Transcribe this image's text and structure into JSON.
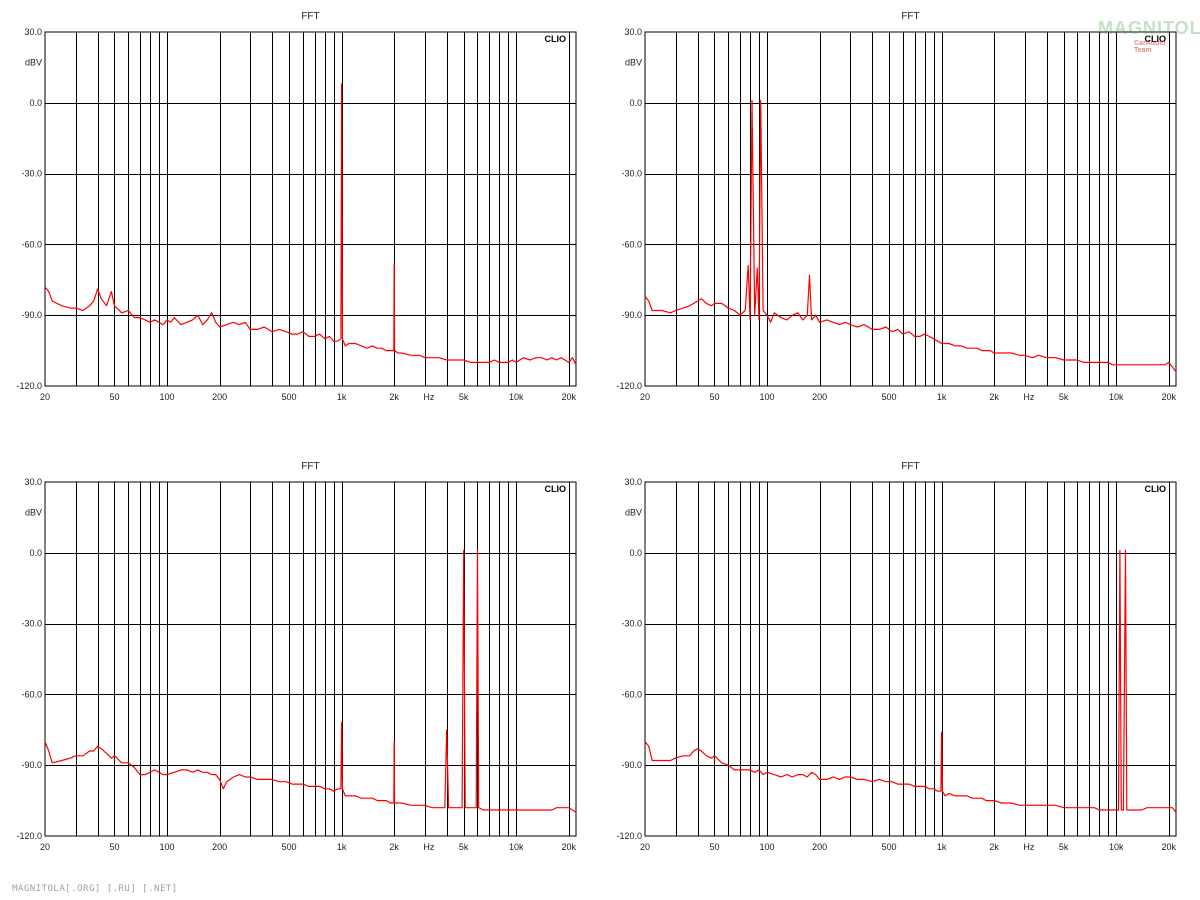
{
  "footer": "MAGNITOLA[.ORG] [.RU] [.NET]",
  "logo": {
    "main": "MAGNITOLA",
    "sub": "CarAudio Team"
  },
  "colors": {
    "trace": "#ff0000",
    "grid": "#000000",
    "background": "#ffffff"
  },
  "chart_data": [
    {
      "type": "line",
      "title": "FFT",
      "brand": "CLIO",
      "ylabel": "dBV",
      "xunit": "Hz",
      "xscale": "log",
      "xlim": [
        20,
        22000
      ],
      "ylim": [
        -120,
        30
      ],
      "yticks": [
        30,
        0,
        -30,
        -60,
        -90,
        -120
      ],
      "ytick_labels": [
        "30.0",
        "0.0",
        "-30.0",
        "-60.0",
        "-90.0",
        "-120.0"
      ],
      "xtick_labels": [
        {
          "f": 20,
          "label": "20"
        },
        {
          "f": 50,
          "label": "50"
        },
        {
          "f": 100,
          "label": "100"
        },
        {
          "f": 200,
          "label": "200"
        },
        {
          "f": 500,
          "label": "500"
        },
        {
          "f": 1000,
          "label": "1k"
        },
        {
          "f": 2000,
          "label": "2k"
        },
        {
          "f": 5000,
          "label": "5k"
        },
        {
          "f": 10000,
          "label": "10k"
        },
        {
          "f": 20000,
          "label": "20k"
        }
      ],
      "grid": true,
      "series": [
        {
          "x": [
            20,
            21,
            22,
            25,
            28,
            30,
            33,
            36,
            38,
            40,
            42,
            45,
            48,
            50,
            55,
            60,
            65,
            70,
            75,
            80,
            85,
            90,
            95,
            100,
            105,
            110,
            120,
            130,
            140,
            150,
            160,
            170,
            180,
            190,
            200,
            220,
            240,
            260,
            280,
            300,
            330,
            360,
            400,
            440,
            480,
            520,
            560,
            600,
            650,
            700,
            750,
            800,
            850,
            900,
            950,
            990,
            1000,
            1010,
            1050,
            1100,
            1200,
            1300,
            1400,
            1500,
            1600,
            1700,
            1800,
            1900,
            1990,
            2000,
            2010,
            2100,
            2200,
            2500,
            2800,
            3000,
            3300,
            3600,
            4000,
            4500,
            5000,
            5500,
            6000,
            6500,
            7000,
            7500,
            8000,
            8500,
            9000,
            9500,
            10000,
            11000,
            12000,
            13000,
            14000,
            15000,
            16000,
            17000,
            18000,
            19000,
            20000,
            21000,
            22000
          ],
          "y": [
            -78,
            -80,
            -84,
            -86,
            -87,
            -87,
            -88,
            -86,
            -84,
            -79,
            -83,
            -86,
            -80,
            -86,
            -89,
            -88,
            -91,
            -91,
            -92,
            -93,
            -92,
            -93,
            -94,
            -92,
            -93,
            -91,
            -94,
            -93,
            -92,
            -90,
            -94,
            -92,
            -89,
            -93,
            -95,
            -94,
            -93,
            -94,
            -93,
            -96,
            -96,
            -95,
            -97,
            -96,
            -97,
            -98,
            -98,
            -97,
            -99,
            -99,
            -98,
            -100,
            -99,
            -101,
            -101,
            -100,
            8,
            -100,
            -103,
            -102,
            -102,
            -103,
            -104,
            -103,
            -104,
            -104,
            -105,
            -105,
            -105,
            -68,
            -105,
            -106,
            -106,
            -107,
            -107,
            -108,
            -108,
            -108,
            -109,
            -109,
            -109,
            -110,
            -110,
            -110,
            -110,
            -109,
            -110,
            -110,
            -110,
            -109,
            -110,
            -108,
            -109,
            -108,
            -108,
            -109,
            -108,
            -109,
            -108,
            -109,
            -110,
            -108,
            -111
          ]
        }
      ]
    },
    {
      "type": "line",
      "title": "FFT",
      "brand": "CLIO",
      "ylabel": "dBV",
      "xunit": "Hz",
      "xscale": "log",
      "xlim": [
        20,
        22000
      ],
      "ylim": [
        -120,
        30
      ],
      "yticks": [
        30,
        0,
        -30,
        -60,
        -90,
        -120
      ],
      "ytick_labels": [
        "30.0",
        "0.0",
        "-30.0",
        "-60.0",
        "-90.0",
        "-120.0"
      ],
      "xtick_labels": [
        {
          "f": 20,
          "label": "20"
        },
        {
          "f": 50,
          "label": "50"
        },
        {
          "f": 100,
          "label": "100"
        },
        {
          "f": 200,
          "label": "200"
        },
        {
          "f": 500,
          "label": "500"
        },
        {
          "f": 1000,
          "label": "1k"
        },
        {
          "f": 2000,
          "label": "2k"
        },
        {
          "f": 5000,
          "label": "5k"
        },
        {
          "f": 10000,
          "label": "10k"
        },
        {
          "f": 20000,
          "label": "20k"
        }
      ],
      "grid": true,
      "series": [
        {
          "x": [
            20,
            21,
            22,
            25,
            28,
            30,
            33,
            36,
            38,
            40,
            42,
            45,
            48,
            50,
            55,
            60,
            65,
            70,
            75,
            78,
            80,
            82,
            85,
            88,
            90,
            92,
            95,
            100,
            105,
            110,
            120,
            130,
            140,
            150,
            160,
            170,
            175,
            180,
            190,
            200,
            220,
            240,
            260,
            280,
            300,
            330,
            360,
            400,
            440,
            480,
            520,
            560,
            600,
            650,
            700,
            750,
            800,
            850,
            900,
            950,
            1000,
            1100,
            1200,
            1300,
            1400,
            1500,
            1600,
            1700,
            1800,
            1900,
            2000,
            2200,
            2500,
            2800,
            3000,
            3300,
            3600,
            4000,
            4500,
            5000,
            5500,
            6000,
            6500,
            7000,
            7500,
            8000,
            8500,
            9000,
            9500,
            10000,
            11000,
            12000,
            13000,
            14000,
            15000,
            16000,
            17000,
            18000,
            19000,
            20000,
            21000,
            22000
          ],
          "y": [
            -82,
            -84,
            -88,
            -88,
            -89,
            -88,
            -87,
            -86,
            -85,
            -84,
            -83,
            -85,
            -86,
            -85,
            -85,
            -87,
            -88,
            -90,
            -88,
            -69,
            -92,
            1,
            -90,
            -70,
            -92,
            1,
            -88,
            -90,
            -93,
            -89,
            -91,
            -92,
            -90,
            -89,
            -92,
            -90,
            -73,
            -92,
            -90,
            -93,
            -92,
            -93,
            -94,
            -93,
            -94,
            -95,
            -94,
            -96,
            -96,
            -95,
            -97,
            -96,
            -98,
            -97,
            -99,
            -99,
            -98,
            -99,
            -100,
            -101,
            -102,
            -102,
            -103,
            -103,
            -104,
            -104,
            -104,
            -105,
            -105,
            -105,
            -106,
            -106,
            -106,
            -107,
            -107,
            -108,
            -107,
            -108,
            -108,
            -109,
            -109,
            -109,
            -110,
            -110,
            -110,
            -110,
            -110,
            -110,
            -111,
            -111,
            -111,
            -111,
            -111,
            -111,
            -111,
            -111,
            -111,
            -111,
            -111,
            -110,
            -112,
            -114
          ]
        }
      ]
    },
    {
      "type": "line",
      "title": "FFT",
      "brand": "CLIO",
      "ylabel": "dBV",
      "xunit": "Hz",
      "xscale": "log",
      "xlim": [
        20,
        22000
      ],
      "ylim": [
        -120,
        30
      ],
      "yticks": [
        30,
        0,
        -30,
        -60,
        -90,
        -120
      ],
      "ytick_labels": [
        "30.0",
        "0.0",
        "-30.0",
        "-60.0",
        "-90.0",
        "-120.0"
      ],
      "xtick_labels": [
        {
          "f": 20,
          "label": "20"
        },
        {
          "f": 50,
          "label": "50"
        },
        {
          "f": 100,
          "label": "100"
        },
        {
          "f": 200,
          "label": "200"
        },
        {
          "f": 500,
          "label": "500"
        },
        {
          "f": 1000,
          "label": "1k"
        },
        {
          "f": 2000,
          "label": "2k"
        },
        {
          "f": 5000,
          "label": "5k"
        },
        {
          "f": 10000,
          "label": "10k"
        },
        {
          "f": 20000,
          "label": "20k"
        }
      ],
      "grid": true,
      "series": [
        {
          "x": [
            20,
            21,
            22,
            25,
            28,
            30,
            33,
            36,
            38,
            40,
            42,
            45,
            48,
            50,
            55,
            60,
            65,
            70,
            75,
            80,
            85,
            90,
            95,
            100,
            110,
            120,
            130,
            140,
            150,
            160,
            170,
            180,
            190,
            200,
            210,
            220,
            240,
            260,
            280,
            300,
            330,
            360,
            400,
            440,
            480,
            520,
            560,
            600,
            650,
            700,
            750,
            800,
            850,
            900,
            950,
            990,
            1000,
            1010,
            1050,
            1100,
            1200,
            1300,
            1400,
            1500,
            1600,
            1700,
            1800,
            1900,
            1990,
            2000,
            2010,
            2200,
            2500,
            2800,
            3000,
            3300,
            3600,
            3900,
            4000,
            4100,
            4500,
            4900,
            5000,
            5100,
            5500,
            5900,
            6000,
            6100,
            6500,
            7000,
            7500,
            8000,
            8500,
            9000,
            9500,
            10000,
            11000,
            12000,
            13000,
            14000,
            15000,
            16000,
            17000,
            18000,
            19000,
            20000,
            21000,
            22000
          ],
          "y": [
            -80,
            -84,
            -89,
            -88,
            -87,
            -86,
            -86,
            -84,
            -84,
            -82,
            -83,
            -85,
            -87,
            -86,
            -89,
            -89,
            -91,
            -94,
            -94,
            -93,
            -92,
            -93,
            -94,
            -94,
            -93,
            -92,
            -92,
            -93,
            -92,
            -93,
            -93,
            -94,
            -94,
            -96,
            -100,
            -97,
            -95,
            -94,
            -95,
            -95,
            -96,
            -96,
            -96,
            -97,
            -97,
            -98,
            -98,
            -98,
            -99,
            -99,
            -99,
            -100,
            -100,
            -101,
            -100,
            -100,
            -72,
            -100,
            -103,
            -103,
            -103,
            -104,
            -104,
            -104,
            -105,
            -105,
            -105,
            -106,
            -106,
            -80,
            -106,
            -106,
            -107,
            -107,
            -107,
            -108,
            -108,
            -108,
            -75,
            -108,
            -108,
            -108,
            1,
            -108,
            -108,
            -108,
            1,
            -108,
            -109,
            -109,
            -109,
            -109,
            -109,
            -109,
            -109,
            -109,
            -109,
            -109,
            -109,
            -109,
            -109,
            -109,
            -108,
            -108,
            -108,
            -108,
            -109,
            -110
          ]
        }
      ]
    },
    {
      "type": "line",
      "title": "FFT",
      "brand": "CLIO",
      "ylabel": "dBV",
      "xunit": "Hz",
      "xscale": "log",
      "xlim": [
        20,
        22000
      ],
      "ylim": [
        -120,
        30
      ],
      "yticks": [
        30,
        0,
        -30,
        -60,
        -90,
        -120
      ],
      "ytick_labels": [
        "30.0",
        "0.0",
        "-30.0",
        "-60.0",
        "-90.0",
        "-120.0"
      ],
      "xtick_labels": [
        {
          "f": 20,
          "label": "20"
        },
        {
          "f": 50,
          "label": "50"
        },
        {
          "f": 100,
          "label": "100"
        },
        {
          "f": 200,
          "label": "200"
        },
        {
          "f": 500,
          "label": "500"
        },
        {
          "f": 1000,
          "label": "1k"
        },
        {
          "f": 2000,
          "label": "2k"
        },
        {
          "f": 5000,
          "label": "5k"
        },
        {
          "f": 10000,
          "label": "10k"
        },
        {
          "f": 20000,
          "label": "20k"
        }
      ],
      "grid": true,
      "series": [
        {
          "x": [
            20,
            21,
            22,
            25,
            28,
            30,
            33,
            36,
            38,
            40,
            42,
            45,
            48,
            50,
            55,
            60,
            65,
            70,
            75,
            80,
            85,
            90,
            95,
            100,
            110,
            120,
            130,
            140,
            150,
            160,
            170,
            180,
            190,
            200,
            220,
            240,
            260,
            280,
            300,
            330,
            360,
            400,
            440,
            480,
            520,
            560,
            600,
            650,
            700,
            750,
            800,
            850,
            900,
            950,
            990,
            1000,
            1010,
            1050,
            1100,
            1200,
            1300,
            1400,
            1500,
            1600,
            1700,
            1800,
            1900,
            2000,
            2200,
            2500,
            2800,
            3000,
            3300,
            3600,
            4000,
            4500,
            5000,
            5500,
            6000,
            6500,
            7000,
            7500,
            8000,
            8500,
            9000,
            9500,
            10000,
            10300,
            10500,
            10700,
            11000,
            11300,
            11500,
            12000,
            13000,
            14000,
            15000,
            16000,
            17000,
            18000,
            19000,
            20000,
            21000,
            22000
          ],
          "y": [
            -80,
            -82,
            -88,
            -88,
            -88,
            -87,
            -86,
            -86,
            -84,
            -83,
            -84,
            -86,
            -87,
            -86,
            -89,
            -90,
            -92,
            -92,
            -92,
            -92,
            -93,
            -92,
            -94,
            -93,
            -94,
            -95,
            -94,
            -95,
            -94,
            -94,
            -95,
            -93,
            -94,
            -96,
            -96,
            -95,
            -96,
            -95,
            -95,
            -96,
            -96,
            -97,
            -96,
            -97,
            -97,
            -98,
            -98,
            -98,
            -99,
            -99,
            -99,
            -100,
            -100,
            -101,
            -101,
            -76,
            -101,
            -103,
            -102,
            -103,
            -103,
            -103,
            -104,
            -104,
            -104,
            -105,
            -105,
            -105,
            -106,
            -106,
            -107,
            -107,
            -107,
            -107,
            -107,
            -107,
            -108,
            -108,
            -108,
            -108,
            -108,
            -108,
            -109,
            -109,
            -109,
            -109,
            -109,
            -109,
            1,
            -109,
            -109,
            1,
            -109,
            -109,
            -109,
            -109,
            -108,
            -108,
            -108,
            -108,
            -108,
            -108,
            -108,
            -110
          ]
        }
      ]
    }
  ]
}
